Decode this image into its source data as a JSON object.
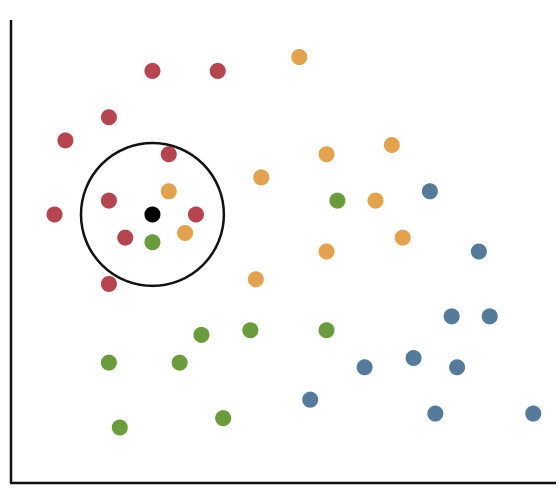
{
  "chart_data": {
    "type": "scatter",
    "title": "",
    "xlabel": "",
    "ylabel": "",
    "xlim": [
      0,
      100
    ],
    "ylim": [
      0,
      100
    ],
    "grid": false,
    "legend": "none",
    "series": [
      {
        "color": "#b5454f",
        "points": [
          {
            "x": 26,
            "y": 89
          },
          {
            "x": 38,
            "y": 89
          },
          {
            "x": 18,
            "y": 79
          },
          {
            "x": 10,
            "y": 74
          },
          {
            "x": 29,
            "y": 71
          },
          {
            "x": 18,
            "y": 61
          },
          {
            "x": 8,
            "y": 58
          },
          {
            "x": 34,
            "y": 58
          },
          {
            "x": 21,
            "y": 53
          },
          {
            "x": 18,
            "y": 43
          }
        ]
      },
      {
        "color": "#e2a250",
        "points": [
          {
            "x": 53,
            "y": 92
          },
          {
            "x": 70,
            "y": 73
          },
          {
            "x": 58,
            "y": 71
          },
          {
            "x": 46,
            "y": 66
          },
          {
            "x": 29,
            "y": 63
          },
          {
            "x": 67,
            "y": 61
          },
          {
            "x": 32,
            "y": 54
          },
          {
            "x": 72,
            "y": 53
          },
          {
            "x": 58,
            "y": 50
          },
          {
            "x": 45,
            "y": 44
          }
        ]
      },
      {
        "color": "#6a9b3c",
        "points": [
          {
            "x": 60,
            "y": 61
          },
          {
            "x": 26,
            "y": 52
          },
          {
            "x": 35,
            "y": 32
          },
          {
            "x": 44,
            "y": 33
          },
          {
            "x": 58,
            "y": 33
          },
          {
            "x": 18,
            "y": 26
          },
          {
            "x": 31,
            "y": 26
          },
          {
            "x": 20,
            "y": 12
          },
          {
            "x": 39,
            "y": 14
          }
        ]
      },
      {
        "color": "#557a9a",
        "points": [
          {
            "x": 77,
            "y": 63
          },
          {
            "x": 86,
            "y": 50
          },
          {
            "x": 81,
            "y": 36
          },
          {
            "x": 88,
            "y": 36
          },
          {
            "x": 65,
            "y": 25
          },
          {
            "x": 74,
            "y": 27
          },
          {
            "x": 82,
            "y": 25
          },
          {
            "x": 55,
            "y": 18
          },
          {
            "x": 78,
            "y": 15
          },
          {
            "x": 96,
            "y": 15
          }
        ]
      }
    ],
    "query_point": {
      "x": 26,
      "y": 58,
      "color": "#000000"
    },
    "neighborhood_circle": {
      "center_x": 26,
      "center_y": 58,
      "radius_x": 25.5
    }
  }
}
